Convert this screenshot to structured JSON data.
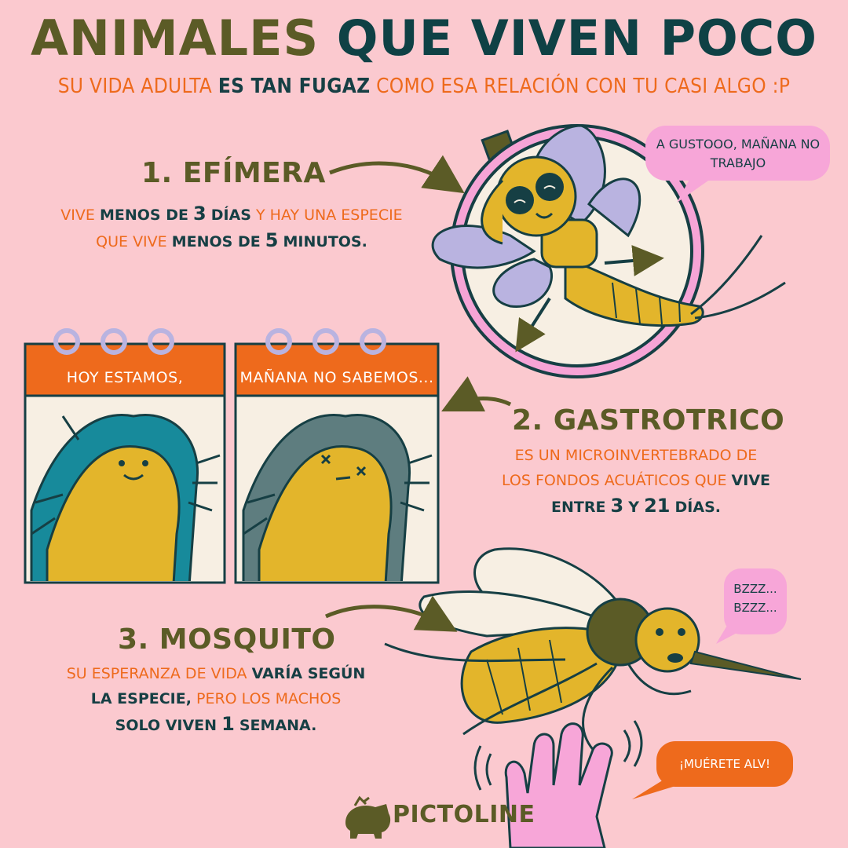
{
  "header": {
    "title_part1": "ANIMALES",
    "title_part2": "QUE VIVEN POCO",
    "subtitle_part1": "SU VIDA ADULTA",
    "subtitle_part2": "ES TAN FUGAZ",
    "subtitle_part3": "COMO ESA RELACIÓN CON TU CASI ALGO :P"
  },
  "sections": [
    {
      "title": "1. EFÍMERA",
      "body": {
        "l1a": "VIVE",
        "l1b": "MENOS DE",
        "l1c": "3",
        "l1d": "DÍAS",
        "l1e": "Y HAY UNA ESPECIE",
        "l2a": "QUE VIVE",
        "l2b": "MENOS DE",
        "l2c": "5",
        "l2d": "MINUTOS."
      },
      "bubble": "A GUSTOOO, MAÑANA NO TRABAJO"
    },
    {
      "title": "2. GASTROTRICO",
      "body": {
        "l1": "ES UN MICROINVERTEBRADO DE",
        "l2a": "LOS FONDOS ACUÁTICOS QUE",
        "l2b": "VIVE",
        "l3a": "ENTRE",
        "l3b": "3",
        "l3c": "Y",
        "l3d": "21",
        "l3e": "DÍAS."
      },
      "calendar_left": "HOY ESTAMOS,",
      "calendar_right": "MAÑANA NO SABEMOS..."
    },
    {
      "title": "3. MOSQUITO",
      "body": {
        "l1a": "SU ESPERANZA DE VIDA",
        "l1b": "VARÍA SEGÚN",
        "l2a": "LA ESPECIE,",
        "l2b": "PERO LOS MACHOS",
        "l3a": "SOLO VIVEN",
        "l3b": "1",
        "l3c": "SEMANA."
      },
      "bubble_buzz_1": "BZZZ...",
      "bubble_buzz_2": "BZZZ...",
      "bubble_hand": "¡MUÉRETE ALV!"
    }
  ],
  "brand": {
    "name": "PICTOLINE"
  },
  "colors": {
    "background": "#fbc9cf",
    "olive": "#5b5b26",
    "teal": "#0f4145",
    "orange": "#ee6a1c",
    "yellow": "#e3b52b",
    "lavender": "#b9b3e0",
    "pink_bubble": "#f7a6d8"
  }
}
